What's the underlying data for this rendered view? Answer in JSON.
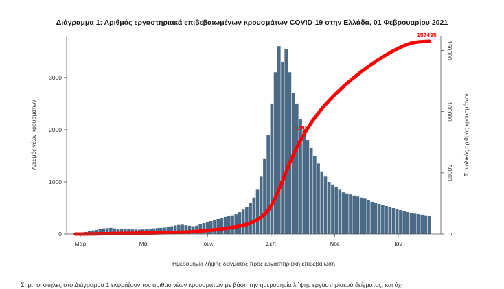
{
  "chart_data": {
    "type": "bar",
    "title": "Διάγραμμα 1: Αριθμός εργαστηριακά επιβεβαιωμένων κρουσμάτων COVID-19 στην Ελλάδα, 01 Φεβρουαρίου 2021",
    "xlabel": "Ημερομηνία λήψης δείγματος προς εργαστηριακή επιβεβαίωση",
    "ylabel": "Αριθμός νέων κρουσμάτων",
    "y2label": "Συνολικός αριθμός κρουσμάτων",
    "x_ticks": [
      "Μαρ",
      "Μαΐ",
      "Ιουλ",
      "Σεπ",
      "Νοε",
      "Ιαν"
    ],
    "ylim": [
      0,
      3800
    ],
    "y_ticks": [
      0,
      1000,
      2000,
      3000
    ],
    "y2lim": [
      0,
      162000
    ],
    "y2_ticks": [
      0,
      50000,
      100000,
      150000
    ],
    "colors": {
      "bars": "#4a6a85",
      "cumulative_line": "#ff0000"
    },
    "annotations": [
      {
        "label": "157495",
        "series": "cumulative",
        "value": 157495
      },
      {
        "label": "79900",
        "series": "cumulative",
        "value": 79900
      }
    ],
    "series": [
      {
        "kind": "bars",
        "values": [
          5,
          12,
          25,
          40,
          55,
          70,
          80,
          95,
          110,
          115,
          120,
          110,
          105,
          100,
          95,
          92,
          90,
          88,
          85,
          90,
          95,
          100,
          110,
          115,
          120,
          125,
          135,
          150,
          165,
          175,
          180,
          170,
          160,
          150,
          160,
          185,
          210,
          230,
          250,
          270,
          290,
          310,
          330,
          350,
          360,
          380,
          420,
          470,
          520,
          600,
          700,
          850,
          1100,
          1450,
          1900,
          2500,
          3100,
          3600,
          3300,
          3550,
          3100,
          2700,
          2500,
          2200,
          2000,
          1800,
          1650,
          1500,
          1350,
          1200,
          1100,
          1000,
          950,
          900,
          850,
          800,
          780,
          760,
          740,
          720,
          700,
          680,
          650,
          620,
          600,
          580,
          560,
          540,
          520,
          500,
          480,
          460,
          440,
          420,
          400,
          390,
          380,
          370,
          360,
          350
        ]
      },
      {
        "kind": "line",
        "values": [
          0,
          5,
          15,
          35,
          60,
          95,
          140,
          195,
          250,
          310,
          370,
          430,
          480,
          530,
          580,
          620,
          660,
          700,
          740,
          780,
          820,
          870,
          920,
          980,
          1040,
          1110,
          1180,
          1260,
          1350,
          1450,
          1570,
          1700,
          1850,
          2020,
          2210,
          2420,
          2660,
          2920,
          3200,
          3510,
          3850,
          4210,
          4600,
          5030,
          5500,
          6000,
          6600,
          7300,
          8100,
          9100,
          10300,
          11900,
          13900,
          16500,
          19900,
          24400,
          30100,
          36800,
          43800,
          51300,
          58500,
          65000,
          71100,
          76700,
          81800,
          86600,
          91100,
          95200,
          99000,
          102600,
          106000,
          109200,
          112200,
          115100,
          117900,
          120600,
          123200,
          125700,
          128100,
          130400,
          132700,
          134900,
          137000,
          139000,
          141000,
          142900,
          144700,
          146500,
          148200,
          149800,
          151300,
          152700,
          154000,
          155100,
          156000,
          156600,
          157000,
          157200,
          157400,
          157495
        ]
      }
    ]
  },
  "footnote": "Σημ.: οι στήλες στο Διάγραμμα 1 εκφράζουν τον αριθμό νέων κρουσμάτων με βάση την ημερομηνία λήψης εργαστηριακού δείγματος, και όχι"
}
